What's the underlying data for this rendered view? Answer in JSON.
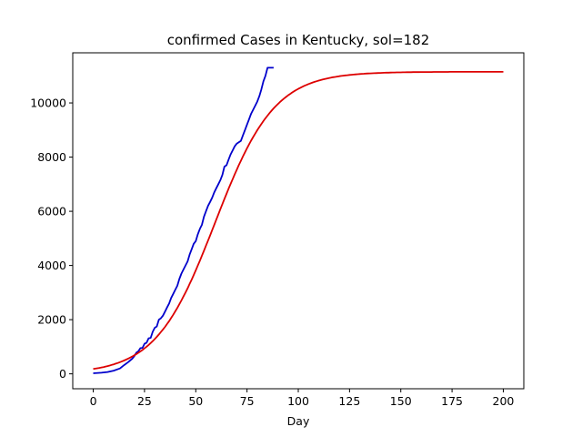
{
  "chart_data": {
    "type": "line",
    "title": "confirmed Cases in Kentucky, sol=182",
    "xlabel": "Day",
    "ylabel": "",
    "xlim": [
      -10,
      210
    ],
    "ylim": [
      -550,
      11850
    ],
    "x_ticks": [
      0,
      25,
      50,
      75,
      100,
      125,
      150,
      175,
      200
    ],
    "y_ticks": [
      0,
      2000,
      4000,
      6000,
      8000,
      10000
    ],
    "grid": false,
    "legend": "none",
    "series": [
      {
        "color": "#0000cc",
        "x": [
          0,
          4,
          7,
          10,
          13,
          15,
          17,
          19,
          20,
          21,
          22,
          23,
          24,
          25,
          26,
          27,
          28,
          29,
          30,
          31,
          32,
          33,
          34,
          35,
          36,
          37,
          38,
          39,
          40,
          41,
          42,
          43,
          44,
          45,
          46,
          47,
          48,
          49,
          50,
          51,
          52,
          53,
          54,
          55,
          56,
          57,
          58,
          59,
          60,
          61,
          62,
          63,
          64,
          65,
          66,
          67,
          68,
          69,
          70,
          71,
          72,
          73,
          74,
          75,
          76,
          77,
          78,
          79,
          80,
          81,
          82,
          83,
          84,
          85,
          86,
          87,
          88
        ],
        "y": [
          20,
          40,
          70,
          120,
          200,
          320,
          430,
          560,
          650,
          780,
          830,
          950,
          960,
          1110,
          1150,
          1310,
          1330,
          1550,
          1700,
          1750,
          2000,
          2050,
          2150,
          2300,
          2450,
          2600,
          2800,
          2950,
          3100,
          3250,
          3500,
          3700,
          3850,
          4000,
          4150,
          4400,
          4600,
          4800,
          4900,
          5150,
          5350,
          5500,
          5800,
          6000,
          6200,
          6350,
          6500,
          6700,
          6850,
          7000,
          7150,
          7350,
          7650,
          7700,
          7900,
          8100,
          8250,
          8400,
          8500,
          8550,
          8600,
          8800,
          9000,
          9200,
          9400,
          9600,
          9750,
          9900,
          10050,
          10250,
          10500,
          10800,
          11000,
          11300,
          11300,
          11300,
          11300
        ]
      },
      {
        "color": "#dd0000",
        "model": "logistic",
        "carrying_capacity": 11150,
        "growth_rate": 0.0693,
        "midpoint_day": 59.4,
        "x_range": [
          0,
          200
        ]
      }
    ]
  }
}
